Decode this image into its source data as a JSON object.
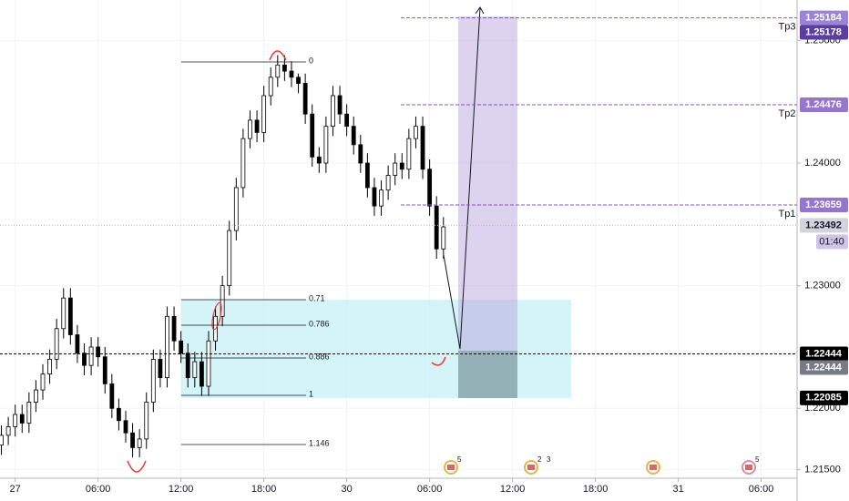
{
  "chart_data": {
    "type": "candlestick",
    "x": [
      -1,
      -0.5,
      0,
      0.5,
      1,
      1.5,
      2,
      2.5,
      3,
      3.5,
      4,
      4.5,
      5,
      5.5,
      6,
      6.5,
      7,
      7.5,
      8,
      8.5,
      9,
      9.5,
      10,
      10.5,
      11,
      11.5,
      12,
      12.5,
      13,
      13.5,
      14,
      14.5,
      15,
      15.5,
      16,
      16.5,
      17,
      17.5,
      18,
      18.5,
      19,
      19.5,
      20,
      20.5,
      21,
      21.5,
      22,
      22.5,
      23,
      23.5,
      24,
      24.5,
      25,
      25.5,
      26,
      26.5,
      27,
      27.5,
      28,
      28.5,
      29,
      29.5,
      30,
      30.5,
      31
    ],
    "open": [
      1.217,
      1.2178,
      1.2185,
      1.2195,
      1.2188,
      1.2205,
      1.2215,
      1.2228,
      1.224,
      1.2265,
      1.229,
      1.226,
      1.2245,
      1.2235,
      1.225,
      1.2242,
      1.222,
      1.22,
      1.219,
      1.218,
      1.2168,
      1.2175,
      1.2205,
      1.224,
      1.2225,
      1.2275,
      1.2255,
      1.2245,
      1.2225,
      1.2238,
      1.2218,
      1.2255,
      1.2275,
      1.23,
      1.2345,
      1.238,
      1.242,
      1.2435,
      1.2425,
      1.2455,
      1.247,
      1.248,
      1.2475,
      1.247,
      1.2465,
      1.244,
      1.2405,
      1.24,
      1.243,
      1.2455,
      1.244,
      1.243,
      1.2415,
      1.24,
      1.238,
      1.2365,
      1.2378,
      1.239,
      1.24,
      1.2395,
      1.242,
      1.243,
      1.2395,
      1.2365,
      1.233
    ],
    "high": [
      1.2186,
      1.2193,
      1.2203,
      1.2203,
      1.2213,
      1.2223,
      1.2236,
      1.2248,
      1.2273,
      1.2298,
      1.2298,
      1.2268,
      1.2253,
      1.2258,
      1.2258,
      1.225,
      1.2228,
      1.2208,
      1.2198,
      1.2188,
      1.2183,
      1.2213,
      1.2248,
      1.2248,
      1.2283,
      1.2283,
      1.2263,
      1.2253,
      1.2246,
      1.2246,
      1.2263,
      1.2283,
      1.2308,
      1.2353,
      1.2388,
      1.2428,
      1.2443,
      1.2443,
      1.2463,
      1.2478,
      1.2488,
      1.2488,
      1.2483,
      1.2473,
      1.2473,
      1.2448,
      1.2413,
      1.2438,
      1.2463,
      1.2463,
      1.2448,
      1.2438,
      1.2423,
      1.2408,
      1.2388,
      1.2386,
      1.2398,
      1.2408,
      1.2408,
      1.2428,
      1.2438,
      1.2438,
      1.2403,
      1.2373,
      1.2356
    ],
    "low": [
      1.2162,
      1.217,
      1.2177,
      1.218,
      1.218,
      1.2197,
      1.2207,
      1.222,
      1.2232,
      1.2257,
      1.2252,
      1.2237,
      1.2227,
      1.2227,
      1.2234,
      1.2212,
      1.2192,
      1.2182,
      1.2172,
      1.216,
      1.216,
      1.2167,
      1.2197,
      1.2217,
      1.2217,
      1.2247,
      1.2237,
      1.2217,
      1.2217,
      1.221,
      1.221,
      1.2247,
      1.2267,
      1.2292,
      1.2337,
      1.2372,
      1.2412,
      1.2417,
      1.2417,
      1.2447,
      1.2462,
      1.2467,
      1.2462,
      1.2457,
      1.2432,
      1.2397,
      1.2392,
      1.2392,
      1.2422,
      1.2432,
      1.2422,
      1.2407,
      1.2392,
      1.2372,
      1.2357,
      1.2357,
      1.237,
      1.2382,
      1.2387,
      1.2387,
      1.2412,
      1.2387,
      1.2357,
      1.2322,
      1.2322
    ],
    "close": [
      1.2178,
      1.2185,
      1.2195,
      1.2188,
      1.2205,
      1.2215,
      1.2228,
      1.224,
      1.2265,
      1.229,
      1.226,
      1.2245,
      1.2235,
      1.225,
      1.2242,
      1.222,
      1.22,
      1.219,
      1.218,
      1.2168,
      1.2175,
      1.2205,
      1.224,
      1.2225,
      1.2275,
      1.2255,
      1.2245,
      1.2225,
      1.2238,
      1.2218,
      1.2255,
      1.2275,
      1.23,
      1.2345,
      1.238,
      1.242,
      1.2435,
      1.2425,
      1.2455,
      1.247,
      1.248,
      1.2475,
      1.247,
      1.2465,
      1.244,
      1.2405,
      1.24,
      1.243,
      1.2455,
      1.244,
      1.243,
      1.2415,
      1.24,
      1.238,
      1.2365,
      1.2378,
      1.239,
      1.24,
      1.2395,
      1.242,
      1.243,
      1.2395,
      1.2365,
      1.233,
      1.2348
    ],
    "up_color": "#ffffff",
    "down_color": "#000000",
    "xlim": [
      -1.1,
      56.6
    ],
    "ylim": [
      1.2143,
      1.2533
    ],
    "xticks": [
      {
        "value": 0,
        "label": "27"
      },
      {
        "value": 6,
        "label": "06:00"
      },
      {
        "value": 12,
        "label": "12:00"
      },
      {
        "value": 18,
        "label": "18:00"
      },
      {
        "value": 24,
        "label": "30"
      },
      {
        "value": 30,
        "label": "06:00"
      },
      {
        "value": 36,
        "label": "12:00"
      },
      {
        "value": 42,
        "label": "18:00"
      },
      {
        "value": 48,
        "label": "31"
      },
      {
        "value": 54,
        "label": "06:00"
      }
    ],
    "yticks": [
      {
        "value": 1.215,
        "label": "1.21500"
      },
      {
        "value": 1.22,
        "label": "1.22000"
      },
      {
        "value": 1.23,
        "label": "1.23000"
      },
      {
        "value": 1.24,
        "label": "1.24000"
      },
      {
        "value": 1.25,
        "label": "1.25000"
      }
    ],
    "levels": [
      {
        "name": "Tp3",
        "value": 1.25184,
        "color": "#9c84d4"
      },
      {
        "name": "Tp2",
        "value": 1.24476,
        "color": "#9575cd"
      },
      {
        "name": "Tp1",
        "value": 1.23659,
        "color": "#9575cd"
      }
    ],
    "price_labels": [
      {
        "value": 1.25178,
        "color": "#5b3fa0"
      },
      {
        "value": 1.23492,
        "color": "#d1d4dc"
      },
      {
        "value": 1.22444,
        "color": "#000000"
      },
      {
        "value": 1.22444,
        "color": "#787b86"
      },
      {
        "value": 1.22085,
        "color": "#000000"
      }
    ],
    "countdown": "01:40",
    "fib_levels": [
      0,
      0.71,
      0.786,
      0.886,
      1,
      1.146
    ],
    "event_counts": [
      5,
      2,
      3,
      5
    ]
  }
}
